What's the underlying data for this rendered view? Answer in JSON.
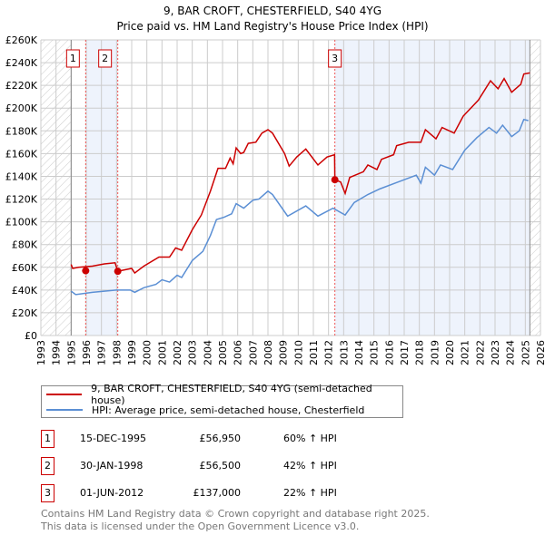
{
  "chart_data": {
    "type": "line",
    "title": "9, BAR CROFT, CHESTERFIELD, S40 4YG",
    "subtitle": "Price paid vs. HM Land Registry's House Price Index (HPI)",
    "xlim": [
      1993,
      2026
    ],
    "ylim": [
      0,
      260000
    ],
    "x_ticks": [
      1993,
      1994,
      1995,
      1996,
      1997,
      1998,
      1999,
      2000,
      2001,
      2002,
      2003,
      2004,
      2005,
      2006,
      2007,
      2008,
      2009,
      2010,
      2011,
      2012,
      2013,
      2014,
      2015,
      2016,
      2017,
      2018,
      2019,
      2020,
      2021,
      2022,
      2023,
      2024,
      2025,
      2026
    ],
    "y_ticks": [
      0,
      20000,
      40000,
      60000,
      80000,
      100000,
      120000,
      140000,
      160000,
      180000,
      200000,
      220000,
      240000,
      260000
    ],
    "y_tick_labels": [
      "£0",
      "£20K",
      "£40K",
      "£60K",
      "£80K",
      "£100K",
      "£120K",
      "£140K",
      "£160K",
      "£180K",
      "£200K",
      "£220K",
      "£240K",
      "£260K"
    ],
    "grid": true,
    "data_range": [
      1995,
      2025.3
    ],
    "series": [
      {
        "name": "9, BAR CROFT, CHESTERFIELD, S40 4YG (semi-detached house)",
        "color": "#cc0000",
        "x": [
          1995.0,
          1995.1,
          1995.5,
          1996.4,
          1997.2,
          1997.9,
          1998.08,
          1999.0,
          1999.2,
          1999.8,
          2000.8,
          2001.5,
          2001.9,
          2002.3,
          2003.0,
          2003.6,
          2004.2,
          2004.7,
          2005.2,
          2005.5,
          2005.7,
          2005.9,
          2006.2,
          2006.4,
          2006.7,
          2007.2,
          2007.6,
          2008.0,
          2008.3,
          2009.1,
          2009.4,
          2009.9,
          2010.5,
          2011.3,
          2011.9,
          2012.4,
          2012.42,
          2012.8,
          2013.1,
          2013.4,
          2014.3,
          2014.6,
          2015.2,
          2015.5,
          2016.3,
          2016.5,
          2017.3,
          2018.1,
          2018.4,
          2019.1,
          2019.5,
          2020.3,
          2020.9,
          2021.9,
          2022.7,
          2023.2,
          2023.6,
          2024.1,
          2024.7,
          2024.9,
          2025.3
        ],
        "y": [
          62500,
          59000,
          60000,
          61000,
          63000,
          64000,
          56500,
          59000,
          55000,
          61000,
          69000,
          69000,
          77000,
          75000,
          93000,
          106000,
          127000,
          147000,
          147000,
          156000,
          151000,
          165000,
          160000,
          161000,
          169000,
          170000,
          178000,
          181000,
          178000,
          160000,
          149000,
          157000,
          164000,
          150000,
          157000,
          159000,
          137000,
          135000,
          125000,
          139000,
          144000,
          150000,
          146000,
          155000,
          159000,
          167000,
          170000,
          170000,
          181000,
          173000,
          183000,
          178000,
          193000,
          207000,
          224000,
          217000,
          226000,
          214000,
          221000,
          230000,
          231000
        ]
      },
      {
        "name": "HPI: Average price, semi-detached house, Chesterfield",
        "color": "#5b8fd4",
        "x": [
          1995.0,
          1995.3,
          1996.4,
          1998.0,
          1998.9,
          1999.2,
          1999.8,
          2000.6,
          2001.0,
          2001.5,
          2002.0,
          2002.3,
          2003.0,
          2003.7,
          2004.2,
          2004.6,
          2005.1,
          2005.6,
          2005.9,
          2006.4,
          2007.0,
          2007.4,
          2008.0,
          2008.3,
          2009.3,
          2010.5,
          2011.3,
          2012.3,
          2013.1,
          2013.7,
          2014.6,
          2015.4,
          2016.6,
          2017.8,
          2018.1,
          2018.4,
          2019.0,
          2019.4,
          2020.2,
          2021.0,
          2021.8,
          2022.6,
          2023.1,
          2023.5,
          2024.1,
          2024.6,
          2024.9,
          2025.2
        ],
        "y": [
          39000,
          36000,
          38000,
          40000,
          40000,
          38000,
          42000,
          45000,
          49000,
          47000,
          53000,
          51000,
          66000,
          74000,
          88000,
          102000,
          104000,
          107000,
          116000,
          112000,
          119000,
          120000,
          127000,
          124000,
          105000,
          114000,
          105000,
          112000,
          106000,
          117000,
          124000,
          129000,
          135000,
          141000,
          134000,
          148000,
          141000,
          150000,
          146000,
          163000,
          174000,
          183000,
          178000,
          185000,
          175000,
          180000,
          190000,
          189000
        ]
      }
    ],
    "sales": [
      {
        "label": "1",
        "x": 1995.96,
        "y": 56950,
        "date": "15-DEC-1995",
        "price": "£56,950",
        "hpi": "60% ↑ HPI"
      },
      {
        "label": "2",
        "x": 1998.08,
        "y": 56500,
        "date": "30-JAN-1998",
        "price": "£56,500",
        "hpi": "42% ↑ HPI"
      },
      {
        "label": "3",
        "x": 2012.42,
        "y": 137000,
        "date": "01-JUN-2012",
        "price": "£137,000",
        "hpi": "22% ↑ HPI"
      }
    ]
  },
  "legend": {
    "red": "9, BAR CROFT, CHESTERFIELD, S40 4YG (semi-detached house)",
    "blue": "HPI: Average price, semi-detached house, Chesterfield"
  },
  "footer": {
    "line1": "Contains HM Land Registry data © Crown copyright and database right 2025.",
    "line2": "This data is licensed under the Open Government Licence v3.0."
  }
}
